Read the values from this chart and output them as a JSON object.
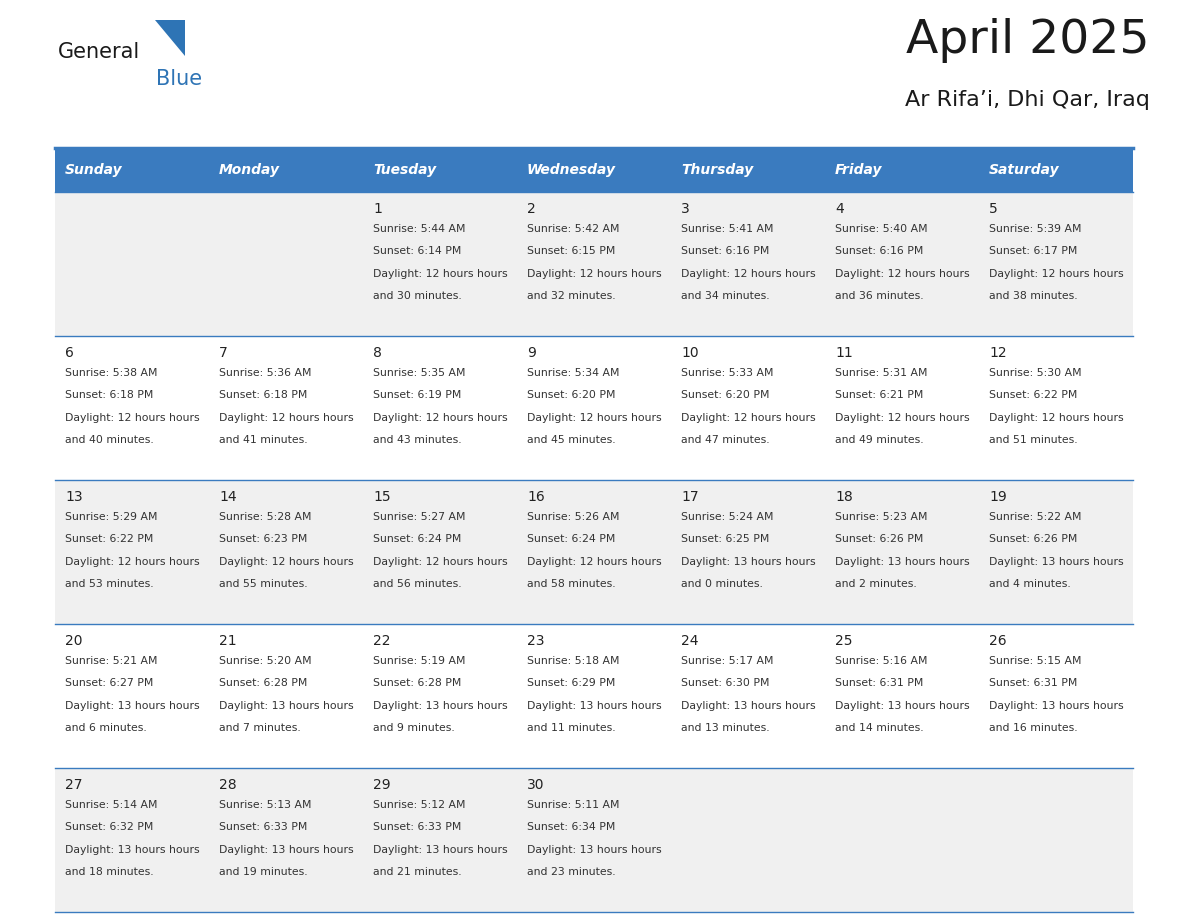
{
  "title": "April 2025",
  "subtitle": "Ar Rifa’i, Dhi Qar, Iraq",
  "header_bg_color": "#3a7bbf",
  "header_text_color": "#ffffff",
  "cell_bg_even": "#f0f0f0",
  "cell_bg_odd": "#ffffff",
  "border_color": "#3a7bbf",
  "day_names": [
    "Sunday",
    "Monday",
    "Tuesday",
    "Wednesday",
    "Thursday",
    "Friday",
    "Saturday"
  ],
  "title_color": "#1a1a1a",
  "subtitle_color": "#1a1a1a",
  "text_color": "#333333",
  "day_num_color": "#222222",
  "logo_black": "#1a1a1a",
  "logo_blue": "#2e74b5",
  "calendar": [
    [
      {
        "day": "",
        "sunrise": "",
        "sunset": "",
        "daylight": ""
      },
      {
        "day": "",
        "sunrise": "",
        "sunset": "",
        "daylight": ""
      },
      {
        "day": "1",
        "sunrise": "5:44 AM",
        "sunset": "6:14 PM",
        "daylight": "12 hours and 30 minutes."
      },
      {
        "day": "2",
        "sunrise": "5:42 AM",
        "sunset": "6:15 PM",
        "daylight": "12 hours and 32 minutes."
      },
      {
        "day": "3",
        "sunrise": "5:41 AM",
        "sunset": "6:16 PM",
        "daylight": "12 hours and 34 minutes."
      },
      {
        "day": "4",
        "sunrise": "5:40 AM",
        "sunset": "6:16 PM",
        "daylight": "12 hours and 36 minutes."
      },
      {
        "day": "5",
        "sunrise": "5:39 AM",
        "sunset": "6:17 PM",
        "daylight": "12 hours and 38 minutes."
      }
    ],
    [
      {
        "day": "6",
        "sunrise": "5:38 AM",
        "sunset": "6:18 PM",
        "daylight": "12 hours and 40 minutes."
      },
      {
        "day": "7",
        "sunrise": "5:36 AM",
        "sunset": "6:18 PM",
        "daylight": "12 hours and 41 minutes."
      },
      {
        "day": "8",
        "sunrise": "5:35 AM",
        "sunset": "6:19 PM",
        "daylight": "12 hours and 43 minutes."
      },
      {
        "day": "9",
        "sunrise": "5:34 AM",
        "sunset": "6:20 PM",
        "daylight": "12 hours and 45 minutes."
      },
      {
        "day": "10",
        "sunrise": "5:33 AM",
        "sunset": "6:20 PM",
        "daylight": "12 hours and 47 minutes."
      },
      {
        "day": "11",
        "sunrise": "5:31 AM",
        "sunset": "6:21 PM",
        "daylight": "12 hours and 49 minutes."
      },
      {
        "day": "12",
        "sunrise": "5:30 AM",
        "sunset": "6:22 PM",
        "daylight": "12 hours and 51 minutes."
      }
    ],
    [
      {
        "day": "13",
        "sunrise": "5:29 AM",
        "sunset": "6:22 PM",
        "daylight": "12 hours and 53 minutes."
      },
      {
        "day": "14",
        "sunrise": "5:28 AM",
        "sunset": "6:23 PM",
        "daylight": "12 hours and 55 minutes."
      },
      {
        "day": "15",
        "sunrise": "5:27 AM",
        "sunset": "6:24 PM",
        "daylight": "12 hours and 56 minutes."
      },
      {
        "day": "16",
        "sunrise": "5:26 AM",
        "sunset": "6:24 PM",
        "daylight": "12 hours and 58 minutes."
      },
      {
        "day": "17",
        "sunrise": "5:24 AM",
        "sunset": "6:25 PM",
        "daylight": "13 hours and 0 minutes."
      },
      {
        "day": "18",
        "sunrise": "5:23 AM",
        "sunset": "6:26 PM",
        "daylight": "13 hours and 2 minutes."
      },
      {
        "day": "19",
        "sunrise": "5:22 AM",
        "sunset": "6:26 PM",
        "daylight": "13 hours and 4 minutes."
      }
    ],
    [
      {
        "day": "20",
        "sunrise": "5:21 AM",
        "sunset": "6:27 PM",
        "daylight": "13 hours and 6 minutes."
      },
      {
        "day": "21",
        "sunrise": "5:20 AM",
        "sunset": "6:28 PM",
        "daylight": "13 hours and 7 minutes."
      },
      {
        "day": "22",
        "sunrise": "5:19 AM",
        "sunset": "6:28 PM",
        "daylight": "13 hours and 9 minutes."
      },
      {
        "day": "23",
        "sunrise": "5:18 AM",
        "sunset": "6:29 PM",
        "daylight": "13 hours and 11 minutes."
      },
      {
        "day": "24",
        "sunrise": "5:17 AM",
        "sunset": "6:30 PM",
        "daylight": "13 hours and 13 minutes."
      },
      {
        "day": "25",
        "sunrise": "5:16 AM",
        "sunset": "6:31 PM",
        "daylight": "13 hours and 14 minutes."
      },
      {
        "day": "26",
        "sunrise": "5:15 AM",
        "sunset": "6:31 PM",
        "daylight": "13 hours and 16 minutes."
      }
    ],
    [
      {
        "day": "27",
        "sunrise": "5:14 AM",
        "sunset": "6:32 PM",
        "daylight": "13 hours and 18 minutes."
      },
      {
        "day": "28",
        "sunrise": "5:13 AM",
        "sunset": "6:33 PM",
        "daylight": "13 hours and 19 minutes."
      },
      {
        "day": "29",
        "sunrise": "5:12 AM",
        "sunset": "6:33 PM",
        "daylight": "13 hours and 21 minutes."
      },
      {
        "day": "30",
        "sunrise": "5:11 AM",
        "sunset": "6:34 PM",
        "daylight": "13 hours and 23 minutes."
      },
      {
        "day": "",
        "sunrise": "",
        "sunset": "",
        "daylight": ""
      },
      {
        "day": "",
        "sunrise": "",
        "sunset": "",
        "daylight": ""
      },
      {
        "day": "",
        "sunrise": "",
        "sunset": "",
        "daylight": ""
      }
    ]
  ]
}
